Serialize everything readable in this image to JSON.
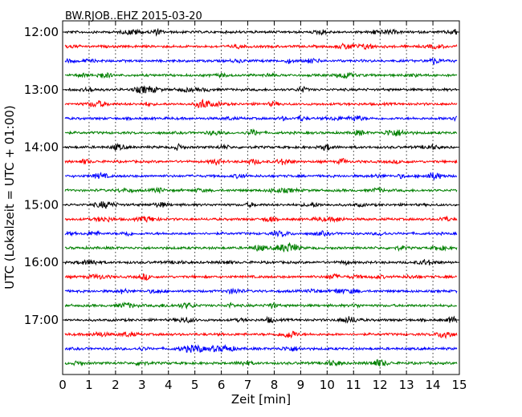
{
  "chart_data": {
    "type": "line",
    "title": "BW.RJOB..EHZ 2015-03-20",
    "xlabel": "Zeit  [min]",
    "ylabel": "UTC (Lokalzeit = UTC + 01:00)",
    "xlim": [
      0,
      15
    ],
    "x_ticks": [
      "0",
      "1",
      "2",
      "3",
      "4",
      "5",
      "6",
      "7",
      "8",
      "9",
      "10",
      "11",
      "12",
      "13",
      "14",
      "15"
    ],
    "y_ticks": [
      "12:00",
      "13:00",
      "14:00",
      "15:00",
      "16:00",
      "17:00"
    ],
    "trace_start_times": [
      "12:00",
      "12:15",
      "12:30",
      "12:45",
      "13:00",
      "13:15",
      "13:30",
      "13:45",
      "14:00",
      "14:15",
      "14:30",
      "14:45",
      "15:00",
      "15:15",
      "15:30",
      "15:45",
      "16:00",
      "16:15",
      "16:30",
      "16:45",
      "17:00",
      "17:15",
      "17:30",
      "17:45"
    ],
    "trace_colors": [
      "#000000",
      "#ff0000",
      "#0000ff",
      "#008000"
    ],
    "grid": "x-dotted",
    "traces_per_hour": 4,
    "trace_duration_min": 15
  }
}
